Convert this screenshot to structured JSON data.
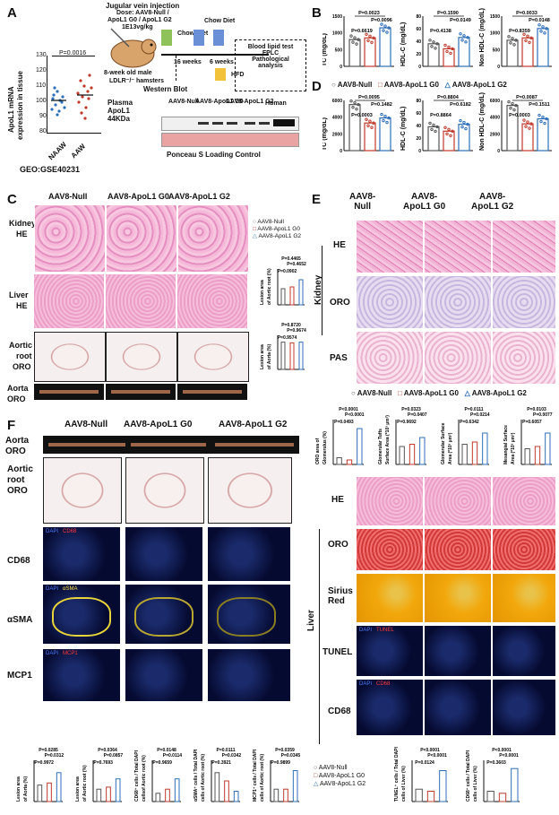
{
  "panels": {
    "A": {
      "letter": "A",
      "chart_ylabel_1": "ApoL1 mRNA",
      "chart_ylabel_2": "expression in tissue",
      "pvalue": "P=0.0016",
      "groups": [
        "NAAW",
        "AAW"
      ],
      "source": "GEO:GSE40231",
      "yticks": [
        "130",
        "120",
        "110",
        "100",
        "90",
        "80"
      ],
      "injection_title": "Jugular vein injection",
      "dose_line1": "Dose: AAV8-Null /",
      "dose_line2": "ApoL1 G0 / ApoL1 G2",
      "dose_line3": "1E13vg/kg",
      "chow_diet_1": "Chow Diet",
      "chow_diet_2": "Chow Diet",
      "hfd": "HFD",
      "weeks_16": "16 weeks",
      "weeks_6": "6 weeks",
      "hamster_line1": "8-week old male",
      "hamster_line2": "LDLR⁻/⁻ hamsters",
      "western_blot": "Western Blot",
      "assays": [
        "Blood lipid test",
        "FPLC",
        "Pathological",
        "analysis"
      ],
      "plasma_line1": "Plasma",
      "plasma_line2": "ApoL1",
      "plasma_line3": "44KDa",
      "wb_null": "AAV8-Null",
      "wb_g0": "AAV8-ApoL1 G0",
      "wb_g2": "AAV8-ApoL1 G2",
      "wb_human": "Human",
      "ponceau": "Ponceau S Loading Control"
    },
    "B": {
      "letter": "B",
      "charts": [
        {
          "ylabel": "TC (mg/dL)",
          "p_top": "P=0.0023",
          "p_mid": "P=0.0096",
          "p_bot": "P=0.6619",
          "yticks": [
            "1500",
            "1000",
            "500",
            "0"
          ]
        },
        {
          "ylabel": "HDL-C (mg/dL)",
          "p_top": "P=0.1590",
          "p_mid": "P=0.0149",
          "p_bot": "P=0.4138",
          "yticks": [
            "80",
            "60",
            "40",
            "20",
            "0"
          ]
        },
        {
          "ylabel": "Non HDL-C (mg/dL)",
          "p_top": "P=0.0033",
          "p_mid": "P=0.0148",
          "p_bot": "P=0.8359",
          "yticks": [
            "1500",
            "1000",
            "500",
            "0"
          ]
        }
      ]
    },
    "D": {
      "letter": "D",
      "legend": [
        "AAV8-Null",
        "AAV8-ApoL1 G0",
        "AAV8-ApoL1 G2"
      ],
      "charts": [
        {
          "ylabel": "TC (mg/dL)",
          "p_top": "P=0.0095",
          "p_mid": "P=0.1482",
          "p_bot": "P=0.0003",
          "yticks": [
            "6000",
            "4000",
            "2000",
            "0"
          ]
        },
        {
          "ylabel": "HDL-C (mg/dL)",
          "p_top": "P=0.8804",
          "p_mid": "P=0.6182",
          "p_bot": "P=0.8864",
          "yticks": [
            "80",
            "60",
            "40",
            "20",
            "0"
          ]
        },
        {
          "ylabel": "Non HDL-C (mg/dL)",
          "p_top": "P=0.0087",
          "p_mid": "P=0.1511",
          "p_bot": "P=0.0003",
          "yticks": [
            "6000",
            "4000",
            "2000",
            "0"
          ]
        }
      ]
    },
    "C": {
      "letter": "C",
      "cols": [
        "AAV8-Null",
        "AAV8-ApoL1 G0",
        "AAV8-ApoL1 G2"
      ],
      "rows": [
        [
          "Kidney",
          "HE"
        ],
        [
          "Liver",
          "HE"
        ],
        [
          "Aortic",
          "root",
          "ORO"
        ],
        [
          "Aorta",
          "ORO"
        ]
      ],
      "legend": [
        "AAV8-Null",
        "AAV8-ApoL1 G0",
        "AAV8-ApoL1 G2"
      ],
      "chart1_ylabel": [
        "Lesion area",
        "of Aortic root (%)"
      ],
      "chart1_p": [
        "P=0.4465",
        "P=0.4652",
        "P=0.0902"
      ],
      "chart2_ylabel": [
        "Lesion area",
        "of Aorta (%)"
      ],
      "chart2_p": [
        "P=0.8720",
        "P=0.9674",
        "P=0.9574"
      ]
    },
    "E": {
      "letter": "E",
      "cols": [
        [
          "AAV8-",
          "Null"
        ],
        [
          "AAV8-",
          "ApoL1 G0"
        ],
        [
          "AAV8-",
          "ApoL1 G2"
        ]
      ],
      "rows": [
        "HE",
        "ORO",
        "PAS"
      ],
      "side_label": "Kidney",
      "legend": [
        "AAV8-Null",
        "AAV8-ApoL1 G0",
        "AAV8-ApoL1 G2"
      ],
      "charts": [
        {
          "ylabel": [
            "ORO area of",
            "Glomerulus (%)"
          ],
          "p": [
            "P<0.0001",
            "P<0.0001",
            "P=0.0493"
          ]
        },
        {
          "ylabel": [
            "Glomerular Tufts",
            "Surface Area (*10³ µm²)"
          ],
          "p": [
            "P=0.0323",
            "P=0.0407",
            "P=0.9692"
          ]
        },
        {
          "ylabel": [
            "Glomerular Surface",
            "Area (*10³ µm²)"
          ],
          "p": [
            "P=0.0111",
            "P=0.0214",
            "P=0.6342"
          ]
        },
        {
          "ylabel": [
            "Mesangial Surface",
            "Area (*10³ µm²)"
          ],
          "p": [
            "P=0.0103",
            "P=0.0077",
            "P=0.6057"
          ]
        }
      ]
    },
    "F": {
      "letter": "F",
      "cols": [
        "AAV8-Null",
        "AAV8-ApoL1 G0",
        "AAV8-ApoL1 G2"
      ],
      "rows": [
        [
          "Aorta",
          "ORO"
        ],
        [
          "Aortic",
          "root",
          "ORO"
        ],
        [
          "CD68"
        ],
        [
          "αSMA"
        ],
        [
          "MCP1"
        ]
      ],
      "if_labels": {
        "dapi": "DAPI",
        "cd68": "CD68",
        "asma": "αSMA",
        "mcp1": "MCP1"
      },
      "liver_label": "Liver",
      "liver_rows": [
        "HE",
        "ORO",
        "Sirius Red",
        "TUNEL",
        "CD68"
      ],
      "tunel_tag": "TUNEL",
      "legend": [
        "AAV8-Null",
        "AAV8-ApoL1 G0",
        "AAV8-ApoL1 G2"
      ],
      "bottom_charts": [
        {
          "ylabel": [
            "Lesion area",
            "of Aorta (%)"
          ],
          "p": [
            "P=0.0285",
            "P=0.0312",
            "P=0.9972"
          ]
        },
        {
          "ylabel": [
            "Lesion area",
            "of Aortic root (%)"
          ],
          "p": [
            "P=0.0364",
            "P=0.0857",
            "P=0.7693"
          ]
        },
        {
          "ylabel": [
            "CD68⁺ cells / Total DAPI",
            "cellsof Aortic root (%)"
          ],
          "p": [
            "P=0.0148",
            "P=0.0114",
            "P=0.9659"
          ]
        },
        {
          "ylabel": [
            "αSMA⁺ cells / Total DAPI",
            "cells of Aortic root (%)"
          ],
          "p": [
            "P=0.0111",
            "P=0.0342",
            "P=0.3921"
          ]
        },
        {
          "ylabel": [
            "MCP1⁺ cells / Total DAPI",
            "cells of Aortic root (%)"
          ],
          "p": [
            "P=0.0359",
            "P=0.0345",
            "P=0.9899"
          ]
        }
      ],
      "liver_charts": [
        {
          "ylabel": [
            "TUNEL⁺ cells / Total DAPI",
            "cells of Liver (%)"
          ],
          "p": [
            "P<0.0001",
            "P<0.0001",
            "P=0.0124"
          ]
        },
        {
          "ylabel": [
            "CD68⁺ cells / Total DAPI",
            "cells of Liver (%)"
          ],
          "p": [
            "P<0.0001",
            "P<0.0001",
            "P=0.3603"
          ]
        }
      ]
    }
  },
  "chart_data": [
    {
      "type": "scatter",
      "title": "",
      "ylabel": "ApoL1 mRNA expression in tissue",
      "categories": [
        "NAAW",
        "AAW"
      ],
      "means": [
        104,
        109
      ],
      "ylim": [
        80,
        130
      ]
    },
    {
      "type": "bar",
      "title": "",
      "ylabel": "TC (mg/dL)",
      "categories": [
        "AAV8-Null",
        "AAV8-ApoL1 G0",
        "AAV8-ApoL1 G2"
      ],
      "values": [
        800,
        850,
        1150
      ],
      "ylim": [
        0,
        1500
      ]
    },
    {
      "type": "bar",
      "title": "",
      "ylabel": "HDL-C (mg/dL)",
      "categories": [
        "AAV8-Null",
        "AAV8-ApoL1 G0",
        "AAV8-ApoL1 G2"
      ],
      "values": [
        36,
        28,
        46
      ],
      "ylim": [
        0,
        80
      ]
    },
    {
      "type": "bar",
      "title": "",
      "ylabel": "Non HDL-C (mg/dL)",
      "categories": [
        "AAV8-Null",
        "AAV8-ApoL1 G0",
        "AAV8-ApoL1 G2"
      ],
      "values": [
        780,
        850,
        1130
      ],
      "ylim": [
        0,
        1500
      ]
    },
    {
      "type": "bar",
      "title": "",
      "ylabel": "TC (mg/dL)",
      "categories": [
        "AAV8-Null",
        "AAV8-ApoL1 G0",
        "AAV8-ApoL1 G2"
      ],
      "values": [
        5500,
        3300,
        3900
      ],
      "ylim": [
        0,
        6000
      ]
    },
    {
      "type": "bar",
      "title": "",
      "ylabel": "HDL-C (mg/dL)",
      "categories": [
        "AAV8-Null",
        "AAV8-ApoL1 G0",
        "AAV8-ApoL1 G2"
      ],
      "values": [
        38,
        31,
        42
      ],
      "ylim": [
        0,
        80
      ]
    },
    {
      "type": "bar",
      "title": "",
      "ylabel": "Non HDL-C (mg/dL)",
      "categories": [
        "AAV8-Null",
        "AAV8-ApoL1 G0",
        "AAV8-ApoL1 G2"
      ],
      "values": [
        5400,
        3200,
        3800
      ],
      "ylim": [
        0,
        6000
      ]
    }
  ],
  "colors": {
    "null": "#555555",
    "g0": "#c0392b",
    "g2": "#2e6fb7"
  }
}
